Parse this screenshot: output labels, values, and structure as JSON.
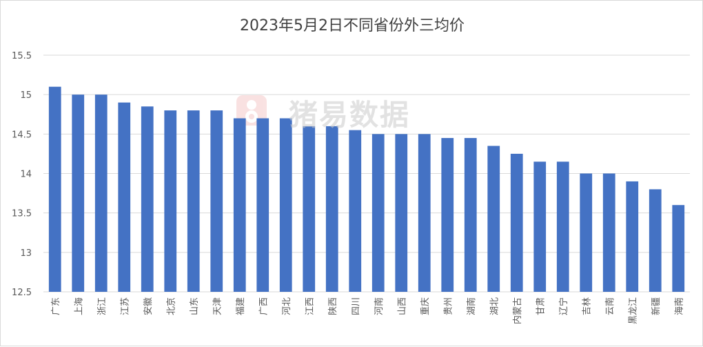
{
  "chart_data": {
    "type": "bar",
    "title": "2023年5月2日不同省份外三均价",
    "xlabel": "",
    "ylabel": "",
    "ylim": [
      12.5,
      15.5
    ],
    "yticks": [
      "12.5",
      "13",
      "13.5",
      "14",
      "14.5",
      "15",
      "15.5"
    ],
    "grid": true,
    "legend": "none",
    "bar_color": "#4472c4",
    "categories": [
      "广东",
      "上海",
      "浙江",
      "江苏",
      "安徽",
      "北京",
      "山东",
      "天津",
      "福建",
      "广西",
      "河北",
      "江西",
      "陕西",
      "四川",
      "河南",
      "山西",
      "重庆",
      "贵州",
      "湖南",
      "湖北",
      "内蒙古",
      "甘肃",
      "辽宁",
      "吉林",
      "云南",
      "黑龙江",
      "新疆",
      "海南"
    ],
    "values": [
      15.1,
      15.0,
      15.0,
      14.9,
      14.85,
      14.8,
      14.8,
      14.8,
      14.7,
      14.7,
      14.7,
      14.6,
      14.6,
      14.55,
      14.5,
      14.5,
      14.5,
      14.45,
      14.45,
      14.35,
      14.25,
      14.15,
      14.15,
      14.0,
      14.0,
      13.9,
      13.8,
      13.6
    ]
  },
  "watermark": {
    "text": "猪易数据",
    "logo": "pig-logo-icon",
    "color": "#e06060"
  }
}
